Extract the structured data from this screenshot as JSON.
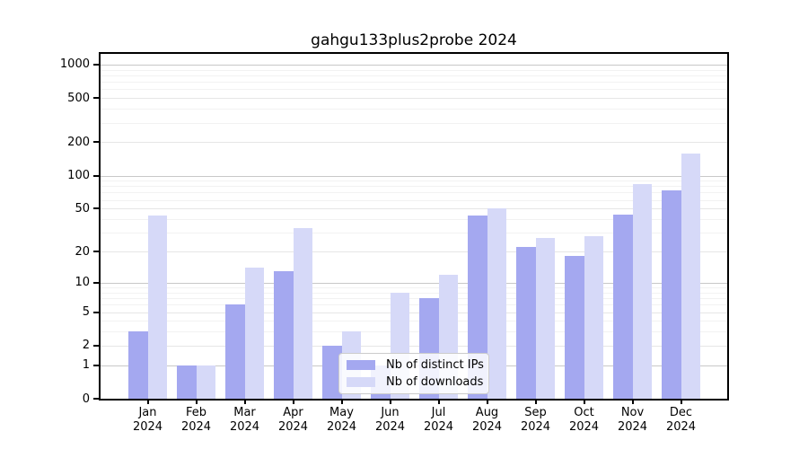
{
  "chart_data": {
    "type": "bar",
    "title": "gahgu133plus2probe 2024",
    "categories": [
      "Jan 2024",
      "Feb 2024",
      "Mar 2024",
      "Apr 2024",
      "May 2024",
      "Jun 2024",
      "Jul 2024",
      "Aug 2024",
      "Sep 2024",
      "Oct 2024",
      "Nov 2024",
      "Dec 2024"
    ],
    "series": [
      {
        "name": "Nb of distinct IPs",
        "color": "#a4a8f0",
        "values": [
          3,
          1,
          6,
          13,
          2,
          1,
          7,
          43,
          22,
          18,
          44,
          74
        ]
      },
      {
        "name": "Nb of downloads",
        "color": "#d6d9f8",
        "values": [
          43,
          1,
          14,
          33,
          3,
          8,
          12,
          50,
          27,
          28,
          84,
          158
        ]
      }
    ],
    "yscale": "log10(1+value)",
    "ylim": [
      0,
      1000
    ],
    "yticks": [
      0,
      1,
      2,
      5,
      10,
      20,
      50,
      100,
      200,
      500,
      1000
    ],
    "xlabel": "",
    "ylabel": "",
    "grid": true,
    "legend_position": "lower center"
  }
}
